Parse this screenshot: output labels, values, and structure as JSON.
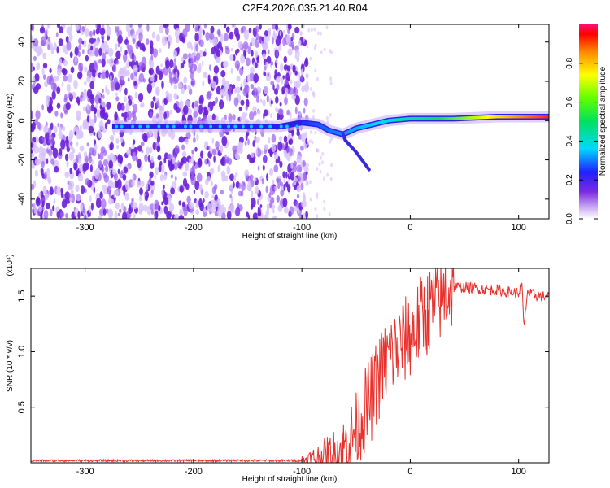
{
  "title": "C2E4.2026.035.21.40.R04",
  "chart_data": [
    {
      "type": "heatmap",
      "title": "C2E4.2026.035.21.40.R04",
      "xlabel": "Height of straight line (km)",
      "ylabel": "Frequency (Hz)",
      "xlim": [
        -350,
        128
      ],
      "ylim": [
        -50,
        49
      ],
      "xticks": [
        -300,
        -200,
        -100,
        0,
        100
      ],
      "yticks": [
        -40,
        -20,
        0,
        20,
        40
      ],
      "noise_region_x": [
        -350,
        -95
      ],
      "ridge": [
        {
          "x": -275,
          "f": -3
        },
        {
          "x": -250,
          "f": -3
        },
        {
          "x": -215,
          "f": -3
        },
        {
          "x": -175,
          "f": -3
        },
        {
          "x": -150,
          "f": -3
        },
        {
          "x": -120,
          "f": -3
        },
        {
          "x": -100,
          "f": -1
        },
        {
          "x": -85,
          "f": -2
        },
        {
          "x": -75,
          "f": -5
        },
        {
          "x": -62,
          "f": -7
        },
        {
          "x": -50,
          "f": -4
        },
        {
          "x": -35,
          "f": -2
        },
        {
          "x": -20,
          "f": 0
        },
        {
          "x": 0,
          "f": 1
        },
        {
          "x": 40,
          "f": 1
        },
        {
          "x": 80,
          "f": 2
        },
        {
          "x": 100,
          "f": 2
        },
        {
          "x": 128,
          "f": 2
        }
      ],
      "branch": [
        {
          "x": -60,
          "f": -10
        },
        {
          "x": -50,
          "f": -16
        },
        {
          "x": -42,
          "f": -22
        },
        {
          "x": -38,
          "f": -25
        }
      ],
      "colorbar": {
        "label": "Normalized spectral amplitude",
        "ticks": [
          "0.0",
          "0.2",
          "0.4",
          "0.6",
          "0.8"
        ],
        "range": [
          0,
          1
        ]
      },
      "colors": {
        "noise": "#7a2be0",
        "ridge_low": "#2030ff",
        "ridge_high": "#ff2020"
      }
    },
    {
      "type": "line",
      "xlabel": "Height of straight line (km)",
      "ylabel": "SNR (10 * v/v)",
      "multiplier": "(x10⁴)",
      "xlim": [
        -350,
        128
      ],
      "ylim": [
        0,
        1.75
      ],
      "xticks": [
        -300,
        -200,
        -100,
        0,
        100
      ],
      "yticks": [
        0.5,
        1.0,
        1.5
      ],
      "ytick_labels": [
        "0.5",
        "1.0",
        "1.5"
      ],
      "series": [
        {
          "name": "SNR",
          "color": "#e8312c",
          "x": [
            -350,
            -300,
            -250,
            -200,
            -150,
            -100,
            -85,
            -70,
            -60,
            -50,
            -45,
            -40,
            -35,
            -30,
            -25,
            -20,
            -15,
            -10,
            -5,
            0,
            5,
            10,
            15,
            20,
            25,
            30,
            35,
            40,
            50,
            60,
            70,
            80,
            90,
            100,
            103,
            105,
            108,
            110,
            115,
            120,
            128
          ],
          "y": [
            0.02,
            0.02,
            0.02,
            0.02,
            0.02,
            0.02,
            0.04,
            0.08,
            0.15,
            0.3,
            0.4,
            0.5,
            0.6,
            0.75,
            0.85,
            0.95,
            1.0,
            1.05,
            1.1,
            1.15,
            1.2,
            1.3,
            1.35,
            1.4,
            1.45,
            1.5,
            1.55,
            1.58,
            1.58,
            1.57,
            1.56,
            1.55,
            1.54,
            1.53,
            1.6,
            1.2,
            1.55,
            1.52,
            1.51,
            1.5,
            1.5
          ]
        }
      ]
    }
  ]
}
